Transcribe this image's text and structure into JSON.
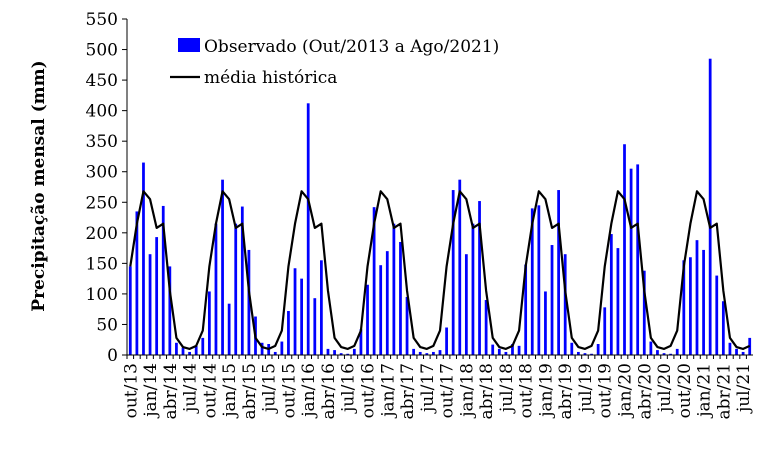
{
  "chart_data": {
    "type": "bar",
    "ylabel": "Precipitação mensal (mm)",
    "xlabel": "",
    "ylim": [
      0,
      550
    ],
    "yticks": [
      0,
      50,
      100,
      150,
      200,
      250,
      300,
      350,
      400,
      450,
      500,
      550
    ],
    "grid": false,
    "legend_position": "top",
    "categories": [
      "out/13",
      "nov/13",
      "dez/13",
      "jan/14",
      "fev/14",
      "mar/14",
      "abr/14",
      "mai/14",
      "jun/14",
      "jul/14",
      "ago/14",
      "set/14",
      "out/14",
      "nov/14",
      "dez/14",
      "jan/15",
      "fev/15",
      "mar/15",
      "abr/15",
      "mai/15",
      "jun/15",
      "jul/15",
      "ago/15",
      "set/15",
      "out/15",
      "nov/15",
      "dez/15",
      "jan/16",
      "fev/16",
      "mar/16",
      "abr/16",
      "mai/16",
      "jun/16",
      "jul/16",
      "ago/16",
      "set/16",
      "out/16",
      "nov/16",
      "dez/16",
      "jan/17",
      "fev/17",
      "mar/17",
      "abr/17",
      "mai/17",
      "jun/17",
      "jul/17",
      "ago/17",
      "set/17",
      "out/17",
      "nov/17",
      "dez/17",
      "jan/18",
      "fev/18",
      "mar/18",
      "abr/18",
      "mai/18",
      "jun/18",
      "jul/18",
      "ago/18",
      "set/18",
      "out/18",
      "nov/18",
      "dez/18",
      "jan/19",
      "fev/19",
      "mar/19",
      "abr/19",
      "mai/19",
      "jun/19",
      "jul/19",
      "ago/19",
      "set/19",
      "out/19",
      "nov/19",
      "dez/19",
      "jan/20",
      "fev/20",
      "mar/20",
      "abr/20",
      "mai/20",
      "jun/20",
      "jul/20",
      "ago/20",
      "set/20",
      "out/20",
      "nov/20",
      "dez/20",
      "jan/21",
      "fev/21",
      "mar/21",
      "abr/21",
      "mai/21",
      "jun/21",
      "jul/21",
      "ago/21"
    ],
    "tick_labels": [
      "out/13",
      "jan/14",
      "abr/14",
      "jul/14",
      "out/14",
      "jan/15",
      "abr/15",
      "jul/15",
      "out/15",
      "jan/16",
      "abr/16",
      "jul/16",
      "out/16",
      "jan/17",
      "abr/17",
      "jul/17",
      "out/17",
      "jan/18",
      "abr/18",
      "jul/18",
      "out/18",
      "jan/19",
      "abr/19",
      "jul/19",
      "out/19",
      "jan/20",
      "abr/20",
      "jul/20",
      "out/20",
      "jan/21",
      "abr/21",
      "jul/21"
    ],
    "series": [
      {
        "name": "Observado (Out/2013 a Ago/2021)",
        "type": "bar",
        "color": "#0000ff",
        "values": [
          145,
          235,
          315,
          165,
          193,
          244,
          145,
          20,
          12,
          5,
          15,
          28,
          104,
          215,
          287,
          84,
          215,
          243,
          172,
          63,
          20,
          18,
          5,
          22,
          72,
          142,
          125,
          412,
          93,
          155,
          10,
          8,
          3,
          2,
          10,
          42,
          115,
          242,
          147,
          170,
          215,
          185,
          95,
          10,
          5,
          3,
          5,
          8,
          45,
          270,
          287,
          165,
          215,
          252,
          90,
          17,
          10,
          5,
          18,
          15,
          148,
          240,
          245,
          104,
          180,
          270,
          165,
          20,
          5,
          3,
          2,
          18,
          78,
          198,
          175,
          345,
          305,
          312,
          138,
          22,
          8,
          3,
          2,
          10,
          155,
          160,
          188,
          172,
          485,
          130,
          88,
          20,
          10,
          5,
          28
        ]
      },
      {
        "name": "média histórica",
        "type": "line",
        "color": "#000000",
        "values": [
          145,
          215,
          268,
          255,
          208,
          215,
          105,
          28,
          13,
          10,
          15,
          40,
          145,
          215,
          268,
          255,
          208,
          215,
          105,
          28,
          13,
          10,
          15,
          40,
          145,
          215,
          268,
          255,
          208,
          215,
          105,
          28,
          13,
          10,
          15,
          40,
          145,
          215,
          268,
          255,
          208,
          215,
          105,
          28,
          13,
          10,
          15,
          40,
          145,
          215,
          268,
          255,
          208,
          215,
          105,
          28,
          13,
          10,
          15,
          40,
          145,
          215,
          268,
          255,
          208,
          215,
          105,
          28,
          13,
          10,
          15,
          40,
          145,
          215,
          268,
          255,
          208,
          215,
          105,
          28,
          13,
          10,
          15,
          40,
          145,
          215,
          268,
          255,
          208,
          215,
          105,
          28,
          13,
          10,
          15
        ]
      }
    ]
  }
}
